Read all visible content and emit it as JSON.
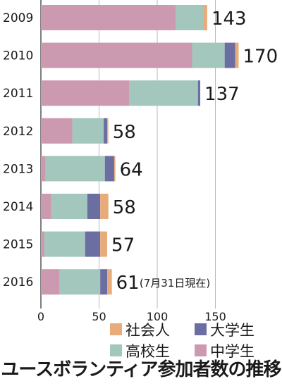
{
  "chart_data": {
    "type": "bar",
    "orientation": "horizontal",
    "stacked": true,
    "title": "ユースボランティア参加者数の推移",
    "categories": [
      "2009",
      "2010",
      "2011",
      "2012",
      "2013",
      "2014",
      "2015",
      "2016"
    ],
    "series": [
      {
        "name": "中学生",
        "color": "#cc9ab0",
        "values": [
          116,
          130,
          76,
          27,
          4,
          9,
          3,
          16
        ]
      },
      {
        "name": "高校生",
        "color": "#a3c6bd",
        "values": [
          24,
          28,
          59,
          27,
          51,
          31,
          35,
          35
        ]
      },
      {
        "name": "大学生",
        "color": "#6a6ea0",
        "values": [
          0,
          9,
          2,
          3,
          8,
          11,
          13,
          6
        ]
      },
      {
        "name": "社会人",
        "color": "#e8ac7a",
        "values": [
          3,
          3,
          0,
          1,
          1,
          7,
          6,
          4
        ]
      }
    ],
    "totals": [
      143,
      170,
      137,
      58,
      64,
      58,
      57,
      61
    ],
    "total_labels": [
      "143",
      "170",
      "137",
      "58",
      "64",
      "58",
      "57",
      "61"
    ],
    "annotations": [
      {
        "category": "2016",
        "text": "(7月31日現在)"
      }
    ],
    "x_ticks": [
      0,
      50,
      100,
      150
    ],
    "xlim": [
      0,
      170
    ],
    "grid": true,
    "legend": [
      {
        "name": "社会人",
        "color": "#e8ac7a"
      },
      {
        "name": "大学生",
        "color": "#6a6ea0"
      },
      {
        "name": "高校生",
        "color": "#a3c6bd"
      },
      {
        "name": "中学生",
        "color": "#cc9ab0"
      }
    ],
    "legend_position": "bottom-right"
  }
}
